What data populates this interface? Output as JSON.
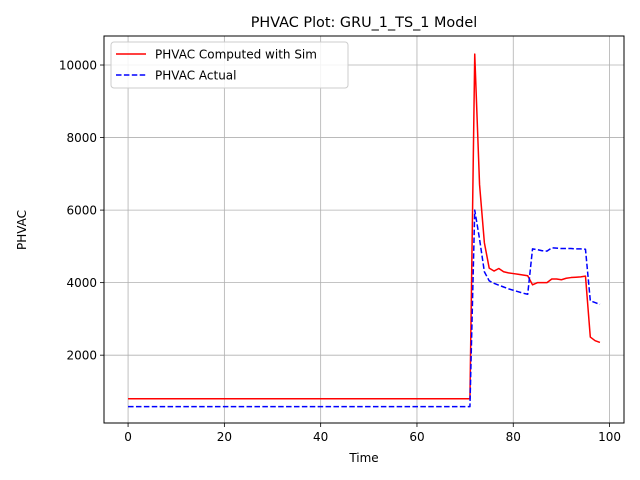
{
  "chart_data": {
    "type": "line",
    "title": "PHVAC Plot: GRU_1_TS_1 Model",
    "xlabel": "Time",
    "ylabel": "PHVAC",
    "xlim": [
      -5,
      103
    ],
    "ylim": [
      130,
      10800
    ],
    "xticks": [
      0,
      20,
      40,
      60,
      80,
      100
    ],
    "yticks": [
      2000,
      4000,
      6000,
      8000,
      10000
    ],
    "grid": true,
    "legend_position": "upper left",
    "series": [
      {
        "name": "PHVAC Computed with Sim",
        "color": "#ff0000",
        "dash": "solid",
        "x": [
          0,
          71,
          72,
          73,
          74,
          75,
          76,
          77,
          78,
          79,
          80,
          81,
          82,
          83,
          84,
          85,
          86,
          87,
          88,
          89,
          90,
          91,
          92,
          93,
          94,
          95,
          96,
          97,
          98
        ],
        "y": [
          800,
          800,
          10300,
          6700,
          5100,
          4400,
          4320,
          4390,
          4300,
          4270,
          4250,
          4230,
          4210,
          4190,
          3940,
          4000,
          4000,
          4000,
          4100,
          4100,
          4080,
          4120,
          4140,
          4150,
          4160,
          4180,
          2500,
          2400,
          2350
        ]
      },
      {
        "name": "PHVAC Actual",
        "color": "#0000ff",
        "dash": "dashed",
        "x": [
          0,
          71,
          72,
          73,
          74,
          75,
          76,
          77,
          78,
          79,
          80,
          81,
          82,
          83,
          84,
          85,
          86,
          87,
          88,
          89,
          90,
          91,
          92,
          93,
          94,
          95,
          96,
          97,
          98
        ],
        "y": [
          580,
          580,
          6000,
          5200,
          4300,
          4050,
          3980,
          3930,
          3880,
          3830,
          3790,
          3750,
          3710,
          3680,
          4930,
          4910,
          4880,
          4870,
          4960,
          4950,
          4940,
          4940,
          4940,
          4930,
          4930,
          4920,
          3500,
          3450,
          3400
        ]
      }
    ]
  }
}
